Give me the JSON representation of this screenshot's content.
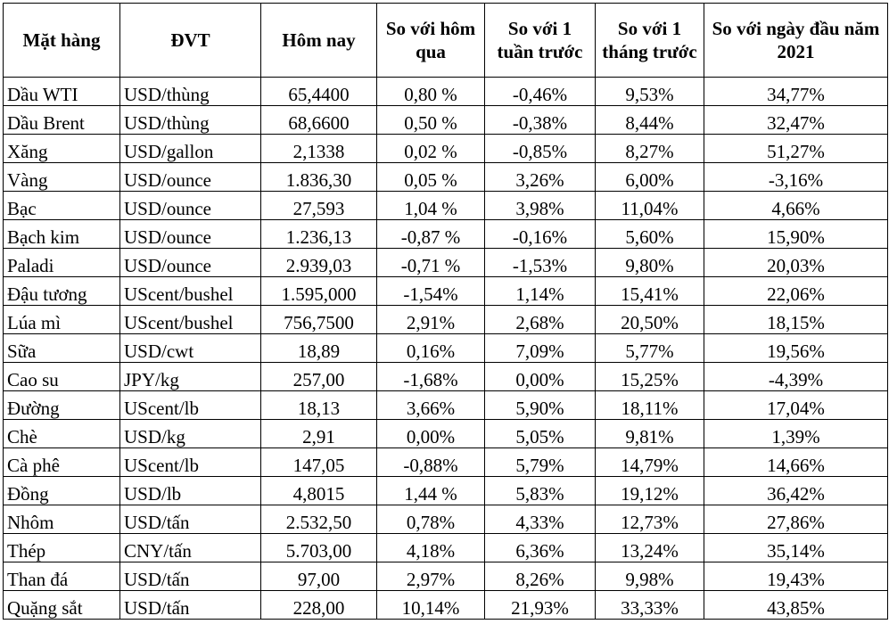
{
  "table": {
    "headers": {
      "item": "Mặt hàng",
      "unit": "ĐVT",
      "today": "Hôm nay",
      "vs_yesterday": "So với hôm qua",
      "vs_week": "So với 1 tuần trước",
      "vs_month": "So với 1 tháng trước",
      "vs_year_start": "So với ngày đầu năm 2021"
    },
    "rows": [
      {
        "item": "Dầu WTI",
        "unit": "USD/thùng",
        "today": "65,4400",
        "d1": "0,80 %",
        "w1": "-0,46%",
        "m1": "9,53%",
        "ytd": "34,77%"
      },
      {
        "item": "Dầu Brent",
        "unit": "USD/thùng",
        "today": "68,6600",
        "d1": "0,50 %",
        "w1": "-0,38%",
        "m1": "8,44%",
        "ytd": "32,47%"
      },
      {
        "item": "Xăng",
        "unit": "USD/gallon",
        "today": "2,1338",
        "d1": "0,02 %",
        "w1": "-0,85%",
        "m1": "8,27%",
        "ytd": "51,27%"
      },
      {
        "item": "Vàng",
        "unit": "USD/ounce",
        "today": "1.836,30",
        "d1": "0,05 %",
        "w1": "3,26%",
        "m1": "6,00%",
        "ytd": "-3,16%"
      },
      {
        "item": "Bạc",
        "unit": "USD/ounce",
        "today": "27,593",
        "d1": "1,04 %",
        "w1": "3,98%",
        "m1": "11,04%",
        "ytd": "4,66%"
      },
      {
        "item": "Bạch kim",
        "unit": "USD/ounce",
        "today": "1.236,13",
        "d1": "-0,87 %",
        "w1": "-0,16%",
        "m1": "5,60%",
        "ytd": "15,90%"
      },
      {
        "item": "Paladi",
        "unit": "USD/ounce",
        "today": "2.939,03",
        "d1": "-0,71 %",
        "w1": "-1,53%",
        "m1": "9,80%",
        "ytd": "20,03%"
      },
      {
        "item": "Đậu tương",
        "unit": "UScent/bushel",
        "today": "1.595,000",
        "d1": "-1,54%",
        "w1": "1,14%",
        "m1": "15,41%",
        "ytd": "22,06%"
      },
      {
        "item": "Lúa mì",
        "unit": "UScent/bushel",
        "today": "756,7500",
        "d1": "2,91%",
        "w1": "2,68%",
        "m1": "20,50%",
        "ytd": "18,15%"
      },
      {
        "item": "Sữa",
        "unit": "USD/cwt",
        "today": "18,89",
        "d1": "0,16%",
        "w1": "7,09%",
        "m1": "5,77%",
        "ytd": "19,56%"
      },
      {
        "item": "Cao su",
        "unit": "JPY/kg",
        "today": "257,00",
        "d1": "-1,68%",
        "w1": "0,00%",
        "m1": "15,25%",
        "ytd": "-4,39%"
      },
      {
        "item": "Đường",
        "unit": "UScent/lb",
        "today": "18,13",
        "d1": "3,66%",
        "w1": "5,90%",
        "m1": "18,11%",
        "ytd": "17,04%"
      },
      {
        "item": "Chè",
        "unit": "USD/kg",
        "today": "2,91",
        "d1": "0,00%",
        "w1": "5,05%",
        "m1": "9,81%",
        "ytd": "1,39%"
      },
      {
        "item": "Cà phê",
        "unit": "UScent/lb",
        "today": "147,05",
        "d1": "-0,88%",
        "w1": "5,79%",
        "m1": "14,79%",
        "ytd": "14,66%"
      },
      {
        "item": "Đồng",
        "unit": "USD/lb",
        "today": "4,8015",
        "d1": "1,44 %",
        "w1": "5,83%",
        "m1": "19,12%",
        "ytd": "36,42%"
      },
      {
        "item": "Nhôm",
        "unit": "USD/tấn",
        "today": "2.532,50",
        "d1": "0,78%",
        "w1": "4,33%",
        "m1": "12,73%",
        "ytd": "27,86%"
      },
      {
        "item": "Thép",
        "unit": "CNY/tấn",
        "today": "5.703,00",
        "d1": "4,18%",
        "w1": "6,36%",
        "m1": "13,24%",
        "ytd": "35,14%"
      },
      {
        "item": "Than đá",
        "unit": "USD/tấn",
        "today": "97,00",
        "d1": "2,97%",
        "w1": "8,26%",
        "m1": "9,98%",
        "ytd": "19,43%"
      },
      {
        "item": "Quặng sắt",
        "unit": "USD/tấn",
        "today": "228,00",
        "d1": "10,14%",
        "w1": "21,93%",
        "m1": "33,33%",
        "ytd": "43,85%"
      }
    ]
  }
}
